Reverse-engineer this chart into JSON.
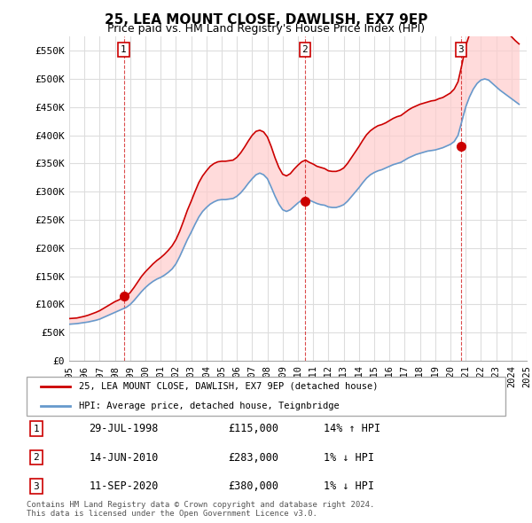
{
  "title": "25, LEA MOUNT CLOSE, DAWLISH, EX7 9EP",
  "subtitle": "Price paid vs. HM Land Registry's House Price Index (HPI)",
  "ylabel": "",
  "ylim": [
    0,
    575000
  ],
  "yticks": [
    0,
    50000,
    100000,
    150000,
    200000,
    250000,
    300000,
    350000,
    400000,
    450000,
    500000,
    550000
  ],
  "ytick_labels": [
    "£0",
    "£50K",
    "£100K",
    "£150K",
    "£200K",
    "£250K",
    "£300K",
    "£350K",
    "£400K",
    "£450K",
    "£500K",
    "£550K"
  ],
  "hpi_years": [
    1995.0,
    1995.25,
    1995.5,
    1995.75,
    1996.0,
    1996.25,
    1996.5,
    1996.75,
    1997.0,
    1997.25,
    1997.5,
    1997.75,
    1998.0,
    1998.25,
    1998.5,
    1998.75,
    1999.0,
    1999.25,
    1999.5,
    1999.75,
    2000.0,
    2000.25,
    2000.5,
    2000.75,
    2001.0,
    2001.25,
    2001.5,
    2001.75,
    2002.0,
    2002.25,
    2002.5,
    2002.75,
    2003.0,
    2003.25,
    2003.5,
    2003.75,
    2004.0,
    2004.25,
    2004.5,
    2004.75,
    2005.0,
    2005.25,
    2005.5,
    2005.75,
    2006.0,
    2006.25,
    2006.5,
    2006.75,
    2007.0,
    2007.25,
    2007.5,
    2007.75,
    2008.0,
    2008.25,
    2008.5,
    2008.75,
    2009.0,
    2009.25,
    2009.5,
    2009.75,
    2010.0,
    2010.25,
    2010.5,
    2010.75,
    2011.0,
    2011.25,
    2011.5,
    2011.75,
    2012.0,
    2012.25,
    2012.5,
    2012.75,
    2013.0,
    2013.25,
    2013.5,
    2013.75,
    2014.0,
    2014.25,
    2014.5,
    2014.75,
    2015.0,
    2015.25,
    2015.5,
    2015.75,
    2016.0,
    2016.25,
    2016.5,
    2016.75,
    2017.0,
    2017.25,
    2017.5,
    2017.75,
    2018.0,
    2018.25,
    2018.5,
    2018.75,
    2019.0,
    2019.25,
    2019.5,
    2019.75,
    2020.0,
    2020.25,
    2020.5,
    2020.75,
    2021.0,
    2021.25,
    2021.5,
    2021.75,
    2022.0,
    2022.25,
    2022.5,
    2022.75,
    2023.0,
    2023.25,
    2023.5,
    2023.75,
    2024.0,
    2024.25,
    2024.5
  ],
  "hpi_values": [
    65000,
    65500,
    66000,
    67000,
    68000,
    69000,
    70500,
    72000,
    74000,
    77000,
    80000,
    83000,
    86000,
    89000,
    92000,
    95000,
    100000,
    107000,
    115000,
    123000,
    130000,
    136000,
    141000,
    145000,
    148000,
    152000,
    157000,
    163000,
    172000,
    185000,
    200000,
    215000,
    228000,
    242000,
    255000,
    265000,
    272000,
    278000,
    282000,
    285000,
    286000,
    286000,
    287000,
    288000,
    292000,
    298000,
    306000,
    315000,
    323000,
    330000,
    333000,
    330000,
    323000,
    308000,
    292000,
    278000,
    268000,
    265000,
    268000,
    274000,
    280000,
    285000,
    288000,
    285000,
    282000,
    279000,
    277000,
    276000,
    273000,
    272000,
    272000,
    274000,
    277000,
    283000,
    291000,
    299000,
    307000,
    316000,
    324000,
    330000,
    334000,
    337000,
    339000,
    342000,
    345000,
    348000,
    350000,
    352000,
    356000,
    360000,
    363000,
    366000,
    368000,
    370000,
    372000,
    373000,
    374000,
    376000,
    378000,
    381000,
    384000,
    389000,
    400000,
    425000,
    450000,
    468000,
    482000,
    492000,
    498000,
    500000,
    498000,
    492000,
    486000,
    480000,
    475000,
    470000,
    465000,
    460000,
    455000
  ],
  "red_years": [
    1995.0,
    1995.25,
    1995.5,
    1995.75,
    1996.0,
    1996.25,
    1996.5,
    1996.75,
    1997.0,
    1997.25,
    1997.5,
    1997.75,
    1998.0,
    1998.25,
    1998.5,
    1998.75,
    1999.0,
    1999.25,
    1999.5,
    1999.75,
    2000.0,
    2000.25,
    2000.5,
    2000.75,
    2001.0,
    2001.25,
    2001.5,
    2001.75,
    2002.0,
    2002.25,
    2002.5,
    2002.75,
    2003.0,
    2003.25,
    2003.5,
    2003.75,
    2004.0,
    2004.25,
    2004.5,
    2004.75,
    2005.0,
    2005.25,
    2005.5,
    2005.75,
    2006.0,
    2006.25,
    2006.5,
    2006.75,
    2007.0,
    2007.25,
    2007.5,
    2007.75,
    2008.0,
    2008.25,
    2008.5,
    2008.75,
    2009.0,
    2009.25,
    2009.5,
    2009.75,
    2010.0,
    2010.25,
    2010.5,
    2010.75,
    2011.0,
    2011.25,
    2011.5,
    2011.75,
    2012.0,
    2012.25,
    2012.5,
    2012.75,
    2013.0,
    2013.25,
    2013.5,
    2013.75,
    2014.0,
    2014.25,
    2014.5,
    2014.75,
    2015.0,
    2015.25,
    2015.5,
    2015.75,
    2016.0,
    2016.25,
    2016.5,
    2016.75,
    2017.0,
    2017.25,
    2017.5,
    2017.75,
    2018.0,
    2018.25,
    2018.5,
    2018.75,
    2019.0,
    2019.25,
    2019.5,
    2019.75,
    2020.0,
    2020.25,
    2020.5,
    2020.75,
    2021.0,
    2021.25,
    2021.5,
    2021.75,
    2022.0,
    2022.25,
    2022.5,
    2022.75,
    2023.0,
    2023.25,
    2023.5,
    2023.75,
    2024.0,
    2024.25,
    2024.5
  ],
  "red_values": [
    75000,
    75500,
    76000,
    77500,
    79000,
    81000,
    83500,
    86000,
    89000,
    93000,
    97000,
    101000,
    105000,
    108000,
    112000,
    115000,
    121000,
    130000,
    140000,
    150000,
    158000,
    165000,
    172000,
    178000,
    183000,
    189000,
    196000,
    204000,
    215000,
    230000,
    248000,
    267000,
    283000,
    300000,
    316000,
    328000,
    337000,
    345000,
    350000,
    353000,
    354000,
    354000,
    355000,
    356000,
    361000,
    369000,
    379000,
    390000,
    400000,
    407000,
    409000,
    406000,
    397000,
    380000,
    360000,
    343000,
    331000,
    328000,
    332000,
    340000,
    347000,
    353000,
    356000,
    352000,
    349000,
    345000,
    343000,
    341000,
    337000,
    336000,
    336000,
    338000,
    342000,
    350000,
    360000,
    370000,
    380000,
    391000,
    401000,
    408000,
    413000,
    417000,
    419000,
    422000,
    426000,
    430000,
    433000,
    435000,
    440000,
    445000,
    449000,
    452000,
    455000,
    457000,
    459000,
    461000,
    462000,
    465000,
    467000,
    471000,
    475000,
    482000,
    495000,
    525000,
    558000,
    579000,
    596000,
    609000,
    616000,
    618000,
    615000,
    608000,
    600000,
    592000,
    587000,
    581000,
    575000,
    568000,
    562000
  ],
  "sale_years": [
    1998.58,
    2010.45,
    2020.7
  ],
  "sale_values": [
    115000,
    283000,
    380000
  ],
  "sale_labels": [
    "1",
    "2",
    "3"
  ],
  "sale_marker_color": "#cc0000",
  "red_line_color": "#cc0000",
  "blue_line_color": "#6699cc",
  "blue_fill_color": "#aaccee",
  "red_fill_color": "#ffcccc",
  "grid_color": "#dddddd",
  "bg_color": "#ffffff",
  "legend1_text": "25, LEA MOUNT CLOSE, DAWLISH, EX7 9EP (detached house)",
  "legend2_text": "HPI: Average price, detached house, Teignbridge",
  "table_rows": [
    [
      "1",
      "29-JUL-1998",
      "£115,000",
      "14% ↑ HPI"
    ],
    [
      "2",
      "14-JUN-2010",
      "£283,000",
      "1% ↓ HPI"
    ],
    [
      "3",
      "11-SEP-2020",
      "£380,000",
      "1% ↓ HPI"
    ]
  ],
  "footnote": "Contains HM Land Registry data © Crown copyright and database right 2024.\nThis data is licensed under the Open Government Licence v3.0.",
  "xtick_years": [
    1995,
    1996,
    1997,
    1998,
    1999,
    2000,
    2001,
    2002,
    2003,
    2004,
    2005,
    2006,
    2007,
    2008,
    2009,
    2010,
    2011,
    2012,
    2013,
    2014,
    2015,
    2016,
    2017,
    2018,
    2019,
    2020,
    2021,
    2022,
    2023,
    2024,
    2025
  ]
}
